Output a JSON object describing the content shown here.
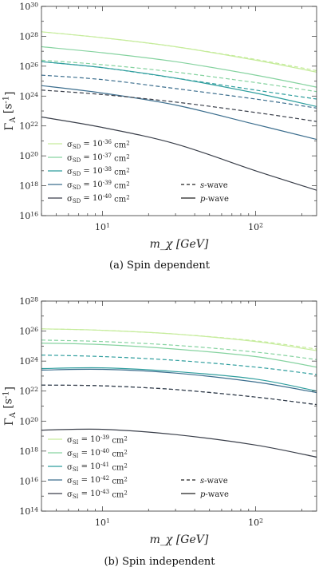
{
  "chart_data": [
    {
      "type": "line",
      "caption": "(a) Spin dependent",
      "xlabel": "m_χ [GeV]",
      "ylabel": "Γ_A [s^-1]",
      "xscale": "log",
      "yscale": "log",
      "xlim": [
        4,
        250
      ],
      "ylim": [
        1e+16,
        1e+30
      ],
      "xticks": [
        {
          "value": 10,
          "label": "10^1"
        },
        {
          "value": 100,
          "label": "10^2"
        }
      ],
      "yticks": [
        {
          "value": 1e+16,
          "label": "10^16"
        },
        {
          "value": 1e+18,
          "label": "10^18"
        },
        {
          "value": 1e+20,
          "label": "10^20"
        },
        {
          "value": 1e+22,
          "label": "10^22"
        },
        {
          "value": 1e+24,
          "label": "10^24"
        },
        {
          "value": 1e+26,
          "label": "10^26"
        },
        {
          "value": 1e+28,
          "label": "10^28"
        },
        {
          "value": 1e+30,
          "label": "10^30"
        }
      ],
      "legend_position": "bottom-left",
      "legend": [
        {
          "label": "σ_SD = 10^-36 cm^2",
          "color": "#c6ec9c"
        },
        {
          "label": "σ_SD = 10^-37 cm^2",
          "color": "#86d3a0"
        },
        {
          "label": "σ_SD = 10^-38 cm^2",
          "color": "#2f9e9e"
        },
        {
          "label": "σ_SD = 10^-39 cm^2",
          "color": "#3c6e8e"
        },
        {
          "label": "σ_SD = 10^-40 cm^2",
          "color": "#3a3f4a"
        }
      ],
      "style_legend": [
        {
          "label": "s-wave",
          "dash": "dashed"
        },
        {
          "label": "p-wave",
          "dash": "solid"
        }
      ],
      "series": [
        {
          "color": "#c6ec9c",
          "dash": "solid",
          "x": [
            4,
            10,
            30,
            100,
            250
          ],
          "y": [
            28.3,
            27.9,
            27.3,
            26.4,
            25.6
          ]
        },
        {
          "color": "#c6ec9c",
          "dash": "dashed",
          "x": [
            4,
            10,
            30,
            100,
            250
          ],
          "y": [
            28.3,
            27.9,
            27.3,
            26.45,
            25.7
          ]
        },
        {
          "color": "#86d3a0",
          "dash": "solid",
          "x": [
            4,
            10,
            30,
            100,
            250
          ],
          "y": [
            27.3,
            26.9,
            26.3,
            25.4,
            24.6
          ]
        },
        {
          "color": "#86d3a0",
          "dash": "dashed",
          "x": [
            4,
            10,
            30,
            100,
            250
          ],
          "y": [
            26.4,
            26.1,
            25.6,
            24.9,
            24.3
          ]
        },
        {
          "color": "#2f9e9e",
          "dash": "solid",
          "x": [
            4,
            10,
            30,
            100,
            250
          ],
          "y": [
            26.3,
            25.9,
            25.2,
            24.2,
            23.3
          ]
        },
        {
          "color": "#2f9e9e",
          "dash": "dashed",
          "x": [
            4,
            10,
            30,
            100,
            250
          ],
          "y": [
            26.3,
            25.9,
            25.2,
            24.4,
            23.8
          ]
        },
        {
          "color": "#3c6e8e",
          "dash": "solid",
          "x": [
            4,
            10,
            30,
            100,
            250
          ],
          "y": [
            24.7,
            24.2,
            23.4,
            22.1,
            21.1
          ]
        },
        {
          "color": "#3c6e8e",
          "dash": "dashed",
          "x": [
            4,
            10,
            30,
            100,
            250
          ],
          "y": [
            25.4,
            25.1,
            24.5,
            23.8,
            23.2
          ]
        },
        {
          "color": "#3a3f4a",
          "dash": "solid",
          "x": [
            4,
            10,
            30,
            100,
            250
          ],
          "y": [
            22.6,
            21.9,
            20.8,
            19.0,
            17.7
          ]
        },
        {
          "color": "#3a3f4a",
          "dash": "dashed",
          "x": [
            4,
            10,
            30,
            100,
            250
          ],
          "y": [
            24.4,
            24.1,
            23.6,
            22.9,
            22.3
          ]
        }
      ]
    },
    {
      "type": "line",
      "caption": "(b) Spin independent",
      "xlabel": "m_χ [GeV]",
      "ylabel": "Γ_A [s^-1]",
      "xscale": "log",
      "yscale": "log",
      "xlim": [
        4,
        250
      ],
      "ylim": [
        100000000000000.0,
        1e+28
      ],
      "xticks": [
        {
          "value": 10,
          "label": "10^1"
        },
        {
          "value": 100,
          "label": "10^2"
        }
      ],
      "yticks": [
        {
          "value": 100000000000000.0,
          "label": "10^14"
        },
        {
          "value": 1e+16,
          "label": "10^16"
        },
        {
          "value": 1e+18,
          "label": "10^18"
        },
        {
          "value": 1e+20,
          "label": "10^20"
        },
        {
          "value": 1e+22,
          "label": "10^22"
        },
        {
          "value": 1e+24,
          "label": "10^24"
        },
        {
          "value": 1e+26,
          "label": "10^26"
        },
        {
          "value": 1e+28,
          "label": "10^28"
        }
      ],
      "legend_position": "bottom-left",
      "legend": [
        {
          "label": "σ_SI = 10^-39 cm^2",
          "color": "#c6ec9c"
        },
        {
          "label": "σ_SI = 10^-40 cm^2",
          "color": "#86d3a0"
        },
        {
          "label": "σ_SI = 10^-41 cm^2",
          "color": "#2f9e9e"
        },
        {
          "label": "σ_SI = 10^-42 cm^2",
          "color": "#3c6e8e"
        },
        {
          "label": "σ_SI = 10^-43 cm^2",
          "color": "#3a3f4a"
        }
      ],
      "style_legend": [
        {
          "label": "s-wave",
          "dash": "dashed"
        },
        {
          "label": "p-wave",
          "dash": "solid"
        }
      ],
      "series": [
        {
          "color": "#c6ec9c",
          "dash": "solid",
          "x": [
            4,
            10,
            30,
            100,
            250
          ],
          "y": [
            26.15,
            26.05,
            25.8,
            25.3,
            24.7
          ]
        },
        {
          "color": "#c6ec9c",
          "dash": "dashed",
          "x": [
            4,
            10,
            30,
            100,
            250
          ],
          "y": [
            26.15,
            26.05,
            25.8,
            25.35,
            24.8
          ]
        },
        {
          "color": "#86d3a0",
          "dash": "solid",
          "x": [
            4,
            10,
            30,
            100,
            250
          ],
          "y": [
            25.2,
            25.1,
            24.8,
            24.3,
            23.6
          ]
        },
        {
          "color": "#86d3a0",
          "dash": "dashed",
          "x": [
            4,
            10,
            30,
            100,
            250
          ],
          "y": [
            25.4,
            25.3,
            25.05,
            24.6,
            24.1
          ]
        },
        {
          "color": "#2f9e9e",
          "dash": "solid",
          "x": [
            4,
            10,
            30,
            100,
            250
          ],
          "y": [
            23.5,
            23.55,
            23.3,
            22.8,
            22.0
          ]
        },
        {
          "color": "#2f9e9e",
          "dash": "dashed",
          "x": [
            4,
            10,
            30,
            100,
            250
          ],
          "y": [
            24.4,
            24.3,
            24.05,
            23.6,
            23.1
          ]
        },
        {
          "color": "#3c6e8e",
          "dash": "solid",
          "x": [
            4,
            10,
            30,
            100,
            250
          ],
          "y": [
            23.4,
            23.45,
            23.2,
            22.6,
            21.9
          ]
        },
        {
          "color": "#3c6e8e",
          "dash": "dashed",
          "x": [
            4,
            10,
            30,
            100,
            250
          ],
          "y": [
            22.4,
            22.35,
            22.1,
            21.6,
            21.1
          ]
        },
        {
          "color": "#3a3f4a",
          "dash": "solid",
          "x": [
            4,
            10,
            30,
            100,
            250
          ],
          "y": [
            19.4,
            19.45,
            19.1,
            18.4,
            17.6
          ]
        },
        {
          "color": "#3a3f4a",
          "dash": "dashed",
          "x": [
            4,
            10,
            30,
            100,
            250
          ],
          "y": [
            22.4,
            22.35,
            22.1,
            21.6,
            21.1
          ]
        }
      ]
    }
  ]
}
